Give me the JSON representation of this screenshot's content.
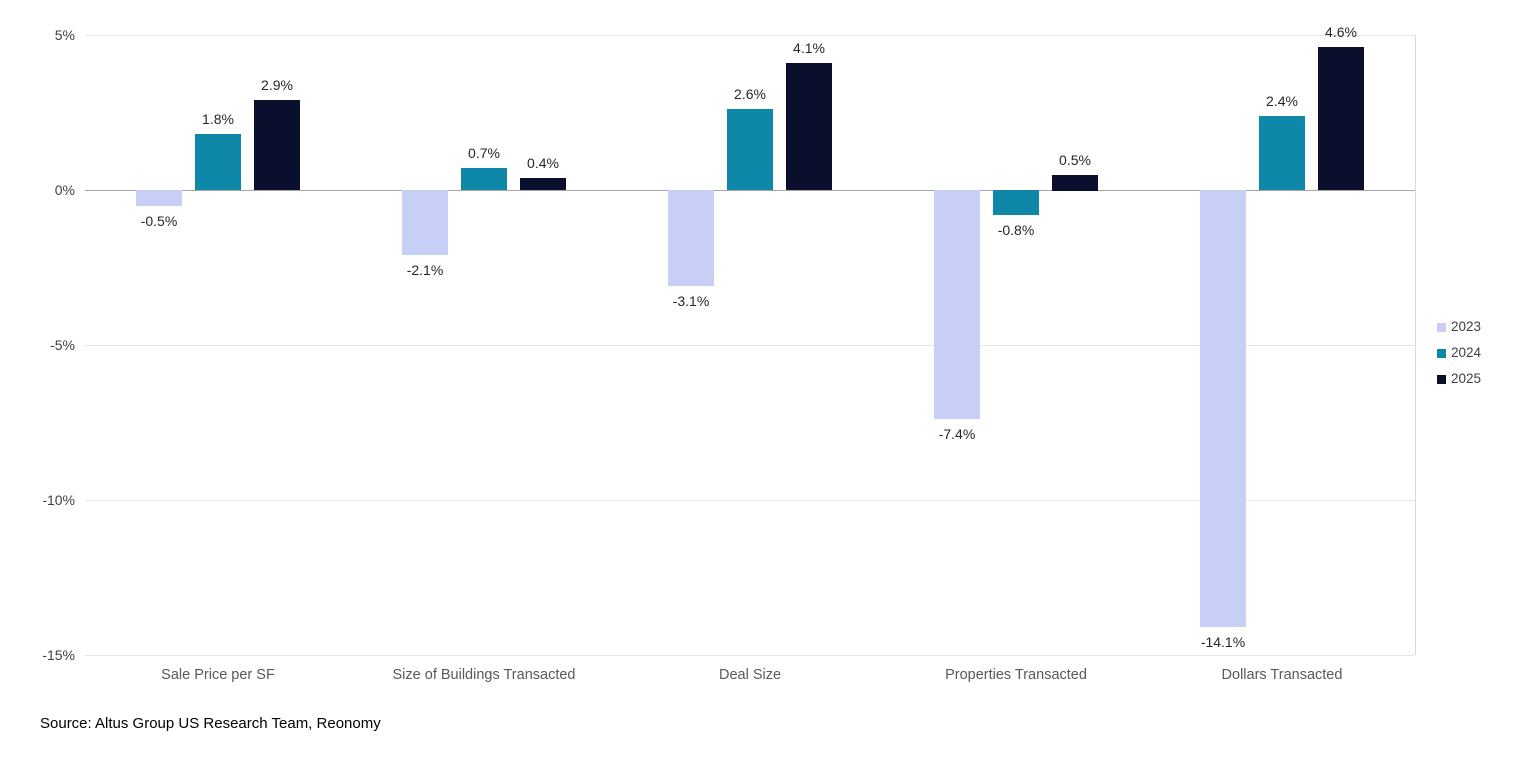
{
  "chart_data": {
    "type": "bar",
    "categories": [
      "Sale Price per SF",
      "Size of Buildings Transacted",
      "Deal Size",
      "Properties Transacted",
      "Dollars Transacted"
    ],
    "series": [
      {
        "name": "2023",
        "color": "#c7cff7",
        "values": [
          -0.5,
          -2.1,
          -3.1,
          -7.4,
          -14.1
        ]
      },
      {
        "name": "2024",
        "color": "#0f87a8",
        "values": [
          1.8,
          0.7,
          2.6,
          -0.8,
          2.4
        ]
      },
      {
        "name": "2025",
        "color": "#0a0f2d",
        "values": [
          2.9,
          0.4,
          4.1,
          0.5,
          4.6
        ]
      }
    ],
    "data_labels": [
      [
        "-0.5%",
        "-2.1%",
        "-3.1%",
        "-7.4%",
        "-14.1%"
      ],
      [
        "1.8%",
        "0.7%",
        "2.6%",
        "-0.8%",
        "2.4%"
      ],
      [
        "2.9%",
        "0.4%",
        "4.1%",
        "0.5%",
        "4.6%"
      ]
    ],
    "title": "",
    "xlabel": "",
    "ylabel": "",
    "ylim": [
      -15,
      5
    ],
    "yticks": [
      5,
      0,
      -5,
      -10,
      -15
    ],
    "ytick_labels": [
      "5%",
      "0%",
      "-5%",
      "-10%",
      "-15%"
    ],
    "grid": true,
    "legend_position": "right"
  },
  "legend": {
    "items": [
      "2023",
      "2024",
      "2025"
    ]
  },
  "source": "Source: Altus Group US Research Team, Reonomy"
}
